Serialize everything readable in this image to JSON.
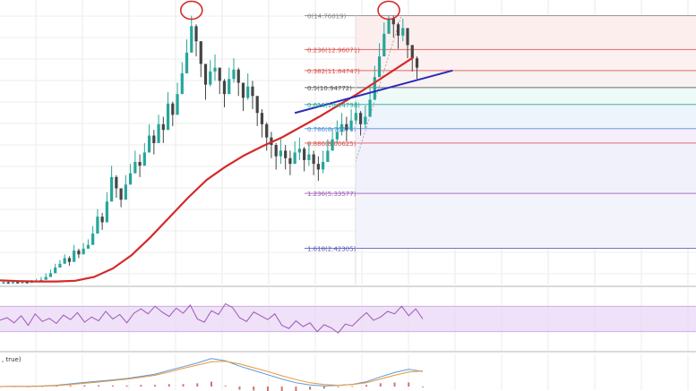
{
  "chart_data": [
    {
      "type": "candlestick",
      "title": "",
      "xlabel": "",
      "ylabel": "",
      "ylim": [
        0.5,
        15.4
      ],
      "grid": true,
      "moving_average_color": "#d42a2a",
      "trendline_color": "#2a2ab8",
      "highlight_circle_color": "#d42a2a",
      "candles": {
        "up_color": "#26a69a",
        "down_color": "#444444",
        "x": [
          0,
          2,
          4,
          6,
          8,
          10,
          12,
          14,
          16,
          18,
          20,
          22,
          24,
          26,
          28,
          30,
          32,
          34,
          36,
          38,
          40,
          42,
          44,
          46,
          48,
          50,
          52,
          54,
          56,
          58,
          60,
          62,
          64,
          66,
          68,
          70,
          72,
          74,
          76,
          78,
          80,
          82,
          84,
          86,
          88,
          90,
          92,
          94,
          96,
          98,
          100,
          102,
          104,
          106,
          108,
          110,
          112,
          114,
          116,
          118,
          120,
          122,
          124,
          126,
          128,
          130,
          132,
          134,
          136,
          138,
          140,
          142,
          144,
          146,
          148,
          150,
          152,
          154,
          156,
          158,
          160,
          162,
          164,
          166,
          168,
          170,
          172,
          174,
          176
        ],
        "close": [
          0.62,
          0.6,
          0.63,
          0.61,
          0.64,
          0.62,
          0.66,
          0.7,
          0.75,
          0.9,
          1.1,
          1.4,
          1.6,
          1.9,
          1.7,
          2.3,
          2.1,
          2.4,
          2.6,
          3.2,
          4.1,
          3.8,
          4.9,
          6.2,
          5.6,
          5.0,
          5.8,
          6.4,
          7.0,
          6.8,
          7.5,
          8.4,
          8.0,
          9.0,
          8.7,
          10.1,
          9.5,
          10.6,
          11.7,
          12.8,
          14.2,
          13.4,
          12.2,
          11.1,
          11.8,
          12.0,
          11.3,
          10.6,
          11.4,
          11.9,
          11.2,
          10.4,
          11.0,
          10.5,
          9.6,
          9.0,
          8.3,
          7.9,
          7.3,
          7.6,
          7.2,
          6.9,
          7.5,
          7.7,
          7.1,
          7.4,
          6.9,
          6.6,
          7.0,
          7.6,
          8.2,
          8.6,
          9.0,
          8.7,
          9.2,
          9.6,
          9.0,
          9.4,
          10.3,
          11.5,
          12.6,
          13.8,
          14.6,
          14.3,
          13.7,
          14.1,
          13.2,
          12.5,
          12.0
        ],
        "high": [
          0.7,
          0.68,
          0.7,
          0.7,
          0.72,
          0.7,
          0.74,
          0.8,
          0.9,
          1.1,
          1.3,
          1.6,
          1.8,
          2.1,
          2.0,
          2.6,
          2.4,
          2.7,
          2.9,
          3.6,
          4.5,
          4.3,
          5.4,
          6.8,
          6.3,
          5.6,
          6.3,
          6.9,
          7.6,
          7.4,
          8.0,
          9.0,
          8.7,
          9.5,
          9.4,
          10.7,
          10.2,
          11.2,
          12.3,
          13.5,
          14.76,
          14.3,
          13.4,
          12.0,
          12.4,
          12.7,
          12.0,
          11.4,
          12.0,
          12.5,
          12.0,
          11.2,
          11.7,
          11.3,
          10.4,
          9.8,
          9.1,
          8.6,
          8.0,
          8.2,
          7.9,
          7.6,
          8.1,
          8.3,
          7.8,
          8.0,
          7.6,
          7.3,
          7.6,
          8.2,
          8.8,
          9.2,
          9.6,
          9.4,
          9.8,
          10.2,
          9.7,
          10.0,
          10.9,
          12.1,
          13.3,
          14.4,
          14.76,
          14.76,
          14.4,
          14.6,
          14.0,
          13.2,
          12.6
        ],
        "low": [
          0.55,
          0.54,
          0.56,
          0.55,
          0.57,
          0.55,
          0.59,
          0.62,
          0.66,
          0.8,
          0.98,
          1.25,
          1.45,
          1.7,
          1.5,
          2.0,
          1.9,
          2.2,
          2.4,
          2.9,
          3.6,
          3.4,
          4.4,
          5.5,
          5.1,
          4.6,
          5.3,
          5.9,
          6.4,
          6.2,
          6.9,
          7.8,
          7.4,
          8.3,
          8.0,
          9.4,
          8.9,
          9.9,
          11.0,
          12.0,
          13.3,
          12.6,
          11.5,
          10.3,
          11.0,
          11.3,
          10.6,
          9.9,
          10.7,
          11.2,
          10.5,
          9.7,
          10.3,
          9.8,
          8.9,
          8.3,
          7.6,
          7.2,
          6.6,
          6.9,
          6.6,
          6.3,
          6.9,
          7.1,
          6.5,
          6.8,
          6.3,
          6.0,
          6.4,
          7.0,
          7.6,
          8.0,
          8.4,
          8.1,
          8.6,
          9.0,
          8.4,
          8.8,
          9.7,
          10.8,
          11.9,
          13.1,
          13.8,
          13.6,
          13.0,
          13.4,
          12.5,
          11.8,
          11.4
        ]
      },
      "moving_average": {
        "x": [
          0,
          8,
          16,
          24,
          32,
          40,
          48,
          56,
          64,
          72,
          80,
          88,
          96,
          104,
          112,
          120,
          128,
          136,
          144,
          152,
          160,
          168,
          176
        ],
        "y": [
          0.72,
          0.68,
          0.66,
          0.66,
          0.7,
          0.9,
          1.35,
          2.05,
          3.0,
          4.05,
          5.1,
          6.05,
          6.75,
          7.35,
          7.85,
          8.3,
          8.85,
          9.4,
          10.0,
          10.6,
          11.25,
          11.9,
          12.55
        ]
      },
      "trendline": {
        "x": [
          124,
          182
        ],
        "y": [
          9.6,
          11.85
        ]
      },
      "fib_retracement": {
        "colors": [
          "#888888",
          "#d9534f",
          "#d9534f",
          "#555555",
          "#26a69a",
          "#4a90d9",
          "#d9534f",
          "#9b59b6",
          "#5b5bbd"
        ],
        "levels": [
          {
            "ratio": "0",
            "price": "(14.76019)"
          },
          {
            "ratio": "0.236",
            "price": "(12.96071)"
          },
          {
            "ratio": "0.382",
            "price": "(11.84747)"
          },
          {
            "ratio": "0.5",
            "price": "(10.94772)"
          },
          {
            "ratio": "0.618",
            "price": "(10.04798)"
          },
          {
            "ratio": "0.786",
            "price": "(8.76674)"
          },
          {
            "ratio": "0.886",
            "price": "(8.00625)"
          },
          {
            "ratio": "1.236",
            "price": "(5.33577)"
          },
          {
            "ratio": "1.618",
            "price": "(2.42305)"
          }
        ],
        "level_values": [
          14.76019,
          12.96071,
          11.84747,
          10.94772,
          10.04798,
          8.76674,
          8.00625,
          5.33577,
          2.42305
        ]
      }
    },
    {
      "type": "line",
      "title": "",
      "indicator": "RSI",
      "line_color": "#9b59b6",
      "band_color": "#e8d4f4",
      "ylim": [
        0,
        100
      ],
      "band": [
        30,
        70
      ],
      "x": [
        0,
        3,
        6,
        9,
        12,
        15,
        18,
        21,
        24,
        27,
        30,
        33,
        36,
        39,
        42,
        45,
        48,
        51,
        54,
        57,
        60,
        63,
        66,
        69,
        72,
        75,
        78,
        81,
        84,
        87,
        90,
        93,
        96,
        99,
        102,
        105,
        108,
        111,
        114,
        117,
        120,
        123,
        126,
        129,
        132,
        135,
        138,
        141,
        144,
        147,
        150,
        153,
        156,
        159,
        162,
        165,
        168,
        171,
        174,
        177,
        180
      ],
      "y": [
        48,
        52,
        44,
        55,
        40,
        58,
        46,
        51,
        43,
        56,
        49,
        60,
        45,
        53,
        47,
        62,
        50,
        57,
        44,
        59,
        66,
        58,
        70,
        61,
        54,
        67,
        59,
        72,
        50,
        45,
        63,
        57,
        74,
        68,
        52,
        46,
        61,
        55,
        49,
        58,
        40,
        35,
        47,
        38,
        44,
        30,
        41,
        36,
        28,
        42,
        39,
        50,
        60,
        48,
        53,
        62,
        58,
        70,
        55,
        66,
        50
      ]
    },
    {
      "type": "line",
      "title": "",
      "indicator": "MACD",
      "label": ", true)",
      "macd_color": "#5b9bd5",
      "signal_color": "#e8943a",
      "histogram_color": "#c0392b",
      "x": [
        0,
        6,
        12,
        18,
        24,
        30,
        36,
        42,
        48,
        54,
        60,
        66,
        72,
        78,
        84,
        90,
        96,
        102,
        108,
        114,
        120,
        126,
        132,
        138,
        144,
        150,
        156,
        162,
        168,
        174,
        180
      ],
      "macd": [
        0,
        0.02,
        0.01,
        0.05,
        0.12,
        0.25,
        0.38,
        0.5,
        0.62,
        0.75,
        0.95,
        1.15,
        1.5,
        1.85,
        2.2,
        2.6,
        2.4,
        1.9,
        1.5,
        1.1,
        0.7,
        0.35,
        0.15,
        0.05,
        0.1,
        0.2,
        0.45,
        0.9,
        1.3,
        1.6,
        1.4
      ],
      "signal": [
        0,
        0.01,
        0.01,
        0.03,
        0.08,
        0.18,
        0.3,
        0.42,
        0.55,
        0.68,
        0.85,
        1.05,
        1.35,
        1.7,
        2.0,
        2.3,
        2.35,
        2.1,
        1.75,
        1.4,
        1.0,
        0.65,
        0.35,
        0.18,
        0.12,
        0.18,
        0.35,
        0.7,
        1.05,
        1.35,
        1.45
      ],
      "histogram": [
        0,
        0.01,
        0,
        0.02,
        0.04,
        0.07,
        0.08,
        0.08,
        0.07,
        0.07,
        0.1,
        0.1,
        0.15,
        0.15,
        0.2,
        0.3,
        0.05,
        -0.2,
        -0.25,
        -0.3,
        -0.3,
        -0.3,
        -0.2,
        -0.13,
        -0.02,
        0.02,
        0.1,
        0.2,
        0.25,
        0.25,
        -0.05
      ]
    }
  ]
}
